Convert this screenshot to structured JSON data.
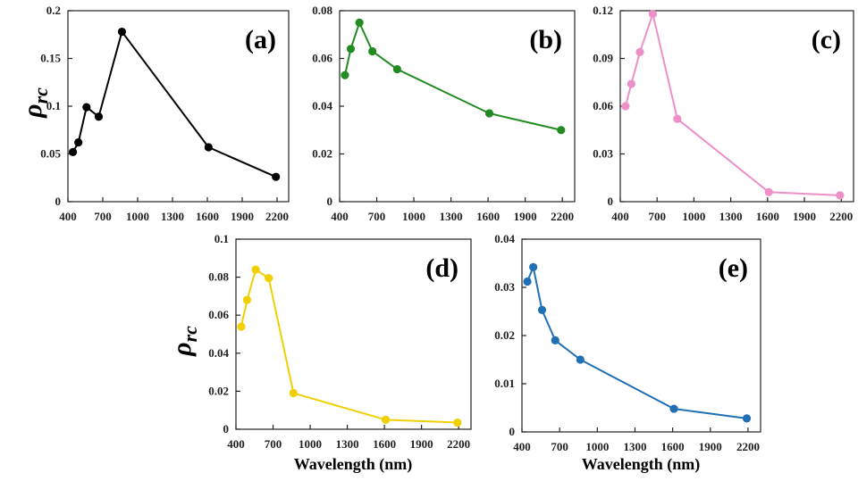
{
  "y_axis_label": {
    "main": "ρ",
    "sub": "rc"
  },
  "chart_data": [
    {
      "type": "line",
      "title": "(a)",
      "color": "#000000",
      "xlabel": "",
      "ylabel": "ρrc",
      "x": [
        443,
        490,
        560,
        665,
        865,
        1610,
        2190
      ],
      "values": [
        0.052,
        0.062,
        0.099,
        0.089,
        0.178,
        0.057,
        0.026
      ],
      "xlim": [
        400,
        2300
      ],
      "xticks": [
        "400",
        "700",
        "1000",
        "1300",
        "1600",
        "1900",
        "2200"
      ],
      "ylim": [
        0,
        0.2
      ],
      "yticks": [
        "0",
        "0.05",
        "0.1",
        "0.15",
        "0.2"
      ]
    },
    {
      "type": "line",
      "title": "(b)",
      "color": "#228B22",
      "xlabel": "",
      "ylabel": "",
      "x": [
        443,
        490,
        560,
        665,
        865,
        1610,
        2190
      ],
      "values": [
        0.053,
        0.064,
        0.075,
        0.063,
        0.0555,
        0.037,
        0.03
      ],
      "xlim": [
        400,
        2300
      ],
      "xticks": [
        "400",
        "700",
        "1000",
        "1300",
        "1600",
        "1900",
        "2200"
      ],
      "ylim": [
        0,
        0.08
      ],
      "yticks": [
        "0",
        "0.02",
        "0.04",
        "0.06",
        "0.08"
      ]
    },
    {
      "type": "line",
      "title": "(c)",
      "color": "#EE90C8",
      "xlabel": "",
      "ylabel": "",
      "x": [
        443,
        490,
        560,
        665,
        865,
        1610,
        2190
      ],
      "values": [
        0.06,
        0.074,
        0.094,
        0.118,
        0.052,
        0.006,
        0.004
      ],
      "xlim": [
        400,
        2300
      ],
      "xticks": [
        "400",
        "700",
        "1000",
        "1300",
        "1600",
        "1900",
        "2200"
      ],
      "ylim": [
        0,
        0.12
      ],
      "yticks": [
        "0",
        "0.03",
        "0.06",
        "0.09",
        "0.12"
      ]
    },
    {
      "type": "line",
      "title": "(d)",
      "color": "#F0D000",
      "xlabel": "Wavelength (nm)",
      "ylabel": "ρrc",
      "x": [
        443,
        490,
        560,
        665,
        865,
        1610,
        2190
      ],
      "values": [
        0.054,
        0.068,
        0.084,
        0.0795,
        0.019,
        0.005,
        0.0035
      ],
      "xlim": [
        400,
        2300
      ],
      "xticks": [
        "400",
        "700",
        "1000",
        "1300",
        "1600",
        "1900",
        "2200"
      ],
      "ylim": [
        0,
        0.1
      ],
      "yticks": [
        "0",
        "0.02",
        "0.04",
        "0.06",
        "0.08",
        "0.1"
      ]
    },
    {
      "type": "line",
      "title": "(e)",
      "color": "#1F6FB4",
      "xlabel": "Wavelength (nm)",
      "ylabel": "",
      "x": [
        443,
        490,
        560,
        665,
        865,
        1610,
        2190
      ],
      "values": [
        0.0312,
        0.0342,
        0.0253,
        0.019,
        0.015,
        0.0048,
        0.0028
      ],
      "xlim": [
        400,
        2300
      ],
      "xticks": [
        "400",
        "700",
        "1000",
        "1300",
        "1600",
        "1900",
        "2200"
      ],
      "ylim": [
        0,
        0.04
      ],
      "yticks": [
        "0",
        "0.01",
        "0.02",
        "0.03",
        "0.04"
      ]
    }
  ]
}
